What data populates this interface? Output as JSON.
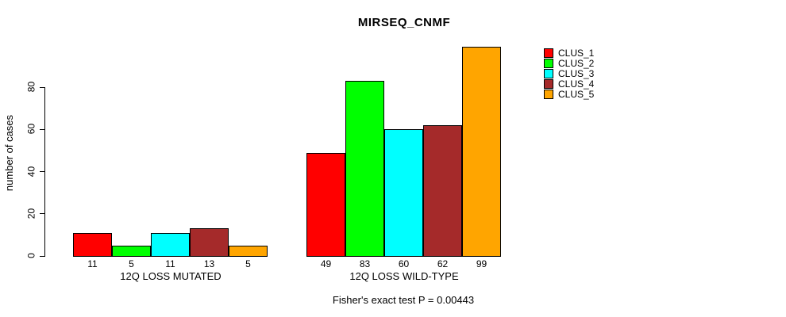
{
  "chart_data": {
    "type": "bar",
    "title": "MIRSEQ_CNMF",
    "ylabel": "number of cases",
    "yticks": [
      0,
      20,
      40,
      60,
      80
    ],
    "ylim": [
      0,
      99
    ],
    "grid": false,
    "legend_position": "right",
    "bar_value_labels": true,
    "series": [
      {
        "name": "CLUS_1",
        "color": "#FF0000"
      },
      {
        "name": "CLUS_2",
        "color": "#00FF00"
      },
      {
        "name": "CLUS_3",
        "color": "#00FFFF"
      },
      {
        "name": "CLUS_4",
        "color": "#A52A2A"
      },
      {
        "name": "CLUS_5",
        "color": "#FFA500"
      }
    ],
    "groups": [
      {
        "label": "12Q LOSS MUTATED",
        "values": [
          11,
          5,
          11,
          13,
          5
        ]
      },
      {
        "label": "12Q LOSS WILD-TYPE",
        "values": [
          49,
          83,
          60,
          62,
          99
        ]
      }
    ],
    "annotation": "Fisher's exact test P = 0.00443"
  }
}
